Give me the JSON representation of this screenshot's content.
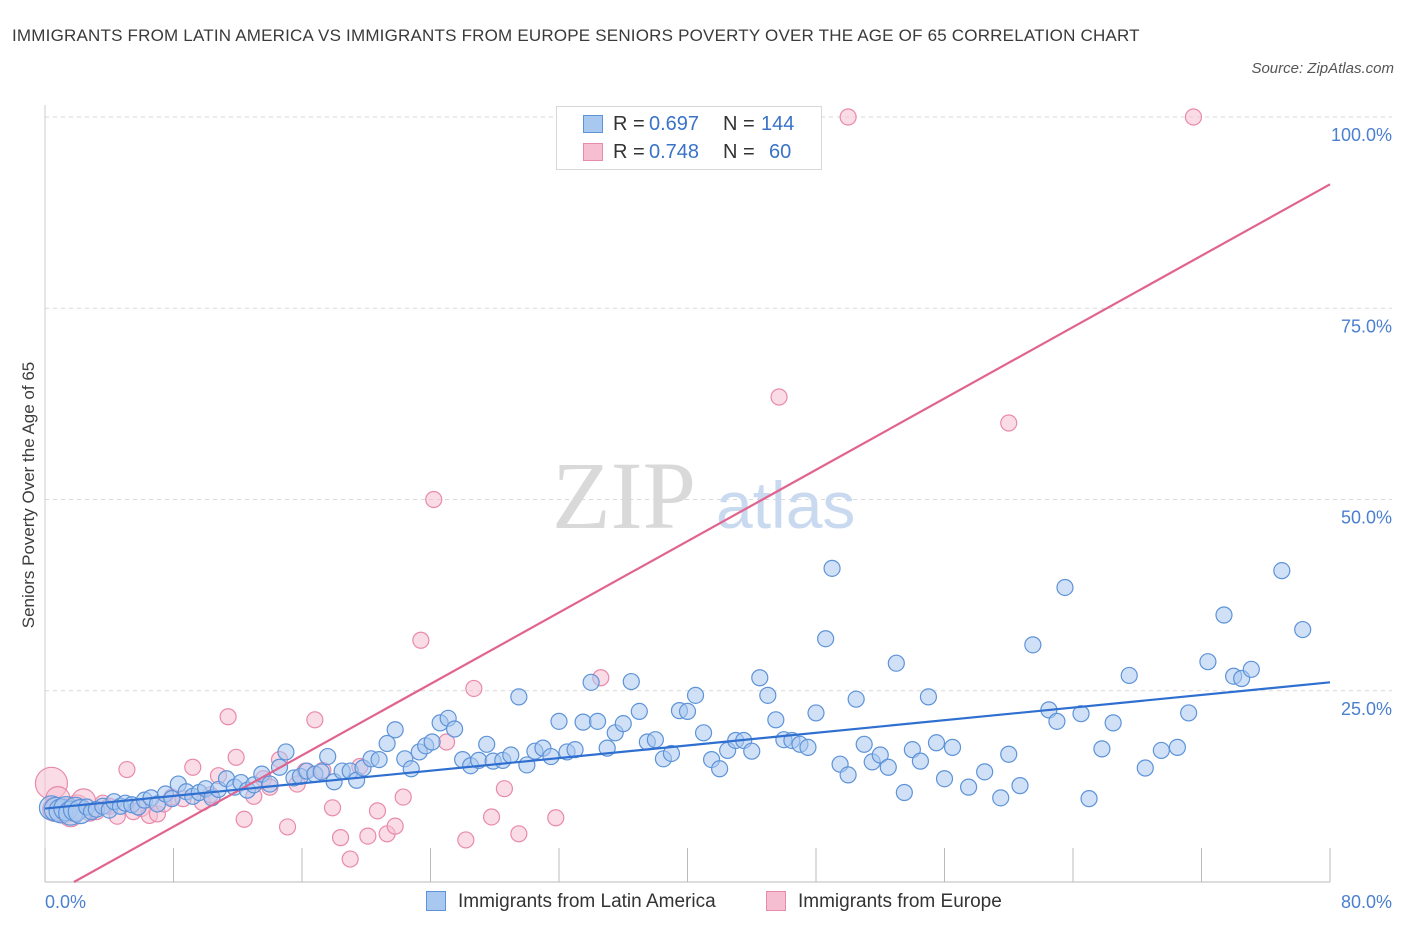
{
  "header": {
    "title": "IMMIGRANTS FROM LATIN AMERICA VS IMMIGRANTS FROM EUROPE SENIORS POVERTY OVER THE AGE OF 65 CORRELATION CHART",
    "source": "Source: ZipAtlas.com"
  },
  "watermark": {
    "zip": "ZIP",
    "atlas": "atlas"
  },
  "legend": {
    "rows": [
      {
        "r_label": "R =",
        "r_value": "0.697",
        "n_label": "N =",
        "n_value": "144"
      },
      {
        "r_label": "R =",
        "r_value": "0.748",
        "n_label": "N =",
        "n_value": "60"
      }
    ]
  },
  "colors": {
    "latin_fill": "#a9c8f0",
    "latin_stroke": "#5d93d8",
    "latin_line": "#2f6fd0",
    "europe_fill": "#f6bfd1",
    "europe_stroke": "#e98aab",
    "europe_line": "#e0648f",
    "tick": "#4b7fd0",
    "grid": "#d9d9d9"
  },
  "chart_data": {
    "type": "scatter",
    "title": "IMMIGRANTS FROM LATIN AMERICA VS IMMIGRANTS FROM EUROPE SENIORS POVERTY OVER THE AGE OF 65 CORRELATION CHART",
    "xlabel": "",
    "ylabel": "Seniors Poverty Over the Age of 65",
    "xlim": [
      0,
      80
    ],
    "ylim": [
      0,
      100
    ],
    "x_tick_labels": [
      "0.0%",
      "80.0%"
    ],
    "y_tick_values": [
      25,
      50,
      75,
      100
    ],
    "y_tick_labels": [
      "25.0%",
      "50.0%",
      "75.0%",
      "100.0%"
    ],
    "grid": true,
    "legend_position": "top-center",
    "series": [
      {
        "name": "Immigrants from Latin America",
        "R": 0.697,
        "N": 144,
        "trend": [
          [
            0,
            9.6
          ],
          [
            80,
            26.1
          ]
        ],
        "points": [
          [
            0.4,
            9.7
          ],
          [
            0.7,
            9.5
          ],
          [
            1.0,
            9.3
          ],
          [
            1.3,
            9.6
          ],
          [
            1.6,
            9.0
          ],
          [
            1.9,
            9.5
          ],
          [
            2.2,
            9.2
          ],
          [
            2.6,
            9.8
          ],
          [
            2.9,
            9.2
          ],
          [
            3.2,
            9.5
          ],
          [
            3.6,
            9.9
          ],
          [
            4.0,
            9.4
          ],
          [
            4.3,
            10.5
          ],
          [
            4.7,
            9.9
          ],
          [
            5.0,
            10.3
          ],
          [
            5.4,
            10.1
          ],
          [
            5.8,
            9.8
          ],
          [
            6.2,
            10.7
          ],
          [
            6.6,
            11.0
          ],
          [
            7.0,
            10.2
          ],
          [
            7.5,
            11.5
          ],
          [
            7.9,
            10.9
          ],
          [
            8.3,
            12.8
          ],
          [
            8.8,
            11.8
          ],
          [
            9.2,
            11.2
          ],
          [
            9.6,
            11.7
          ],
          [
            10.0,
            12.2
          ],
          [
            10.4,
            11.0
          ],
          [
            10.8,
            12.1
          ],
          [
            11.3,
            13.5
          ],
          [
            11.8,
            12.4
          ],
          [
            12.2,
            13.0
          ],
          [
            12.6,
            12.0
          ],
          [
            13.0,
            12.7
          ],
          [
            13.5,
            14.1
          ],
          [
            14.0,
            12.8
          ],
          [
            14.6,
            15.0
          ],
          [
            15.0,
            17.0
          ],
          [
            15.5,
            13.6
          ],
          [
            15.9,
            13.8
          ],
          [
            16.3,
            14.5
          ],
          [
            16.8,
            14.1
          ],
          [
            17.2,
            14.4
          ],
          [
            17.6,
            16.4
          ],
          [
            18.0,
            13.1
          ],
          [
            18.5,
            14.5
          ],
          [
            19.0,
            14.5
          ],
          [
            19.4,
            13.3
          ],
          [
            19.8,
            14.9
          ],
          [
            20.3,
            16.1
          ],
          [
            20.8,
            16.0
          ],
          [
            21.3,
            18.1
          ],
          [
            21.8,
            19.9
          ],
          [
            22.4,
            16.1
          ],
          [
            22.8,
            14.8
          ],
          [
            23.3,
            17.0
          ],
          [
            23.7,
            17.8
          ],
          [
            24.1,
            18.3
          ],
          [
            24.6,
            20.8
          ],
          [
            25.1,
            21.4
          ],
          [
            25.5,
            20.0
          ],
          [
            26.0,
            16.0
          ],
          [
            26.5,
            15.2
          ],
          [
            27.0,
            15.9
          ],
          [
            27.5,
            18.0
          ],
          [
            27.9,
            15.8
          ],
          [
            28.5,
            15.9
          ],
          [
            29.0,
            16.6
          ],
          [
            29.5,
            24.2
          ],
          [
            30.0,
            15.3
          ],
          [
            30.5,
            17.1
          ],
          [
            31.0,
            17.5
          ],
          [
            31.5,
            16.4
          ],
          [
            32.0,
            21.0
          ],
          [
            32.5,
            17.0
          ],
          [
            33.0,
            17.3
          ],
          [
            33.5,
            20.9
          ],
          [
            34.0,
            26.1
          ],
          [
            34.4,
            21.0
          ],
          [
            35.0,
            17.5
          ],
          [
            35.5,
            19.5
          ],
          [
            36.0,
            20.7
          ],
          [
            36.5,
            26.2
          ],
          [
            37.0,
            22.3
          ],
          [
            37.5,
            18.3
          ],
          [
            38.0,
            18.6
          ],
          [
            38.5,
            16.1
          ],
          [
            39.0,
            16.8
          ],
          [
            39.5,
            22.4
          ],
          [
            40.0,
            22.3
          ],
          [
            40.5,
            24.4
          ],
          [
            41.0,
            19.5
          ],
          [
            41.5,
            16.0
          ],
          [
            42.0,
            14.8
          ],
          [
            42.5,
            17.2
          ],
          [
            43.0,
            18.5
          ],
          [
            43.5,
            18.5
          ],
          [
            44.0,
            17.1
          ],
          [
            44.5,
            26.7
          ],
          [
            45.0,
            24.4
          ],
          [
            45.5,
            21.2
          ],
          [
            46.0,
            18.6
          ],
          [
            46.5,
            18.5
          ],
          [
            47.0,
            18.0
          ],
          [
            47.5,
            17.6
          ],
          [
            48.0,
            22.1
          ],
          [
            48.6,
            31.8
          ],
          [
            49.0,
            41.0
          ],
          [
            49.5,
            15.4
          ],
          [
            50.0,
            14.0
          ],
          [
            50.5,
            23.9
          ],
          [
            51.0,
            18.0
          ],
          [
            51.5,
            15.7
          ],
          [
            52.0,
            16.6
          ],
          [
            52.5,
            15.0
          ],
          [
            53.0,
            28.6
          ],
          [
            53.5,
            11.7
          ],
          [
            54.0,
            17.3
          ],
          [
            54.5,
            15.8
          ],
          [
            55.0,
            24.2
          ],
          [
            55.5,
            18.2
          ],
          [
            56.0,
            13.5
          ],
          [
            56.5,
            17.6
          ],
          [
            57.5,
            12.4
          ],
          [
            58.5,
            14.4
          ],
          [
            59.5,
            11.0
          ],
          [
            60.0,
            16.7
          ],
          [
            60.7,
            12.6
          ],
          [
            61.5,
            31.0
          ],
          [
            62.5,
            22.5
          ],
          [
            63.0,
            21.0
          ],
          [
            63.5,
            38.5
          ],
          [
            64.5,
            22.0
          ],
          [
            65.0,
            10.9
          ],
          [
            65.8,
            17.4
          ],
          [
            66.5,
            20.8
          ],
          [
            67.5,
            27.0
          ],
          [
            68.5,
            14.9
          ],
          [
            69.5,
            17.2
          ],
          [
            70.5,
            17.6
          ],
          [
            71.2,
            22.1
          ],
          [
            72.4,
            28.8
          ],
          [
            73.4,
            34.9
          ],
          [
            74.0,
            26.9
          ],
          [
            74.5,
            26.6
          ],
          [
            75.1,
            27.8
          ],
          [
            77.0,
            40.7
          ],
          [
            78.3,
            33.0
          ]
        ]
      },
      {
        "name": "Immigrants from Europe",
        "R": 0.748,
        "N": 60,
        "trend": [
          [
            1.8,
            0
          ],
          [
            80,
            91.2
          ]
        ],
        "points": [
          [
            0.4,
            12.9
          ],
          [
            0.8,
            10.9
          ],
          [
            1.2,
            9.3
          ],
          [
            1.6,
            8.8
          ],
          [
            2.0,
            9.8
          ],
          [
            2.4,
            10.6
          ],
          [
            2.8,
            9.0
          ],
          [
            3.2,
            9.2
          ],
          [
            3.6,
            10.3
          ],
          [
            4.0,
            9.9
          ],
          [
            4.5,
            8.6
          ],
          [
            5.1,
            14.7
          ],
          [
            5.5,
            9.2
          ],
          [
            6.0,
            9.6
          ],
          [
            6.5,
            8.7
          ],
          [
            7.0,
            8.9
          ],
          [
            7.4,
            10.2
          ],
          [
            7.9,
            11.1
          ],
          [
            8.6,
            10.9
          ],
          [
            9.2,
            15.0
          ],
          [
            9.8,
            10.4
          ],
          [
            10.3,
            11.4
          ],
          [
            10.8,
            13.9
          ],
          [
            11.4,
            21.6
          ],
          [
            11.9,
            16.3
          ],
          [
            12.4,
            8.2
          ],
          [
            13.0,
            11.2
          ],
          [
            13.6,
            13.5
          ],
          [
            14.0,
            12.4
          ],
          [
            14.6,
            16.0
          ],
          [
            15.1,
            7.2
          ],
          [
            15.7,
            12.8
          ],
          [
            16.2,
            14.5
          ],
          [
            16.8,
            21.2
          ],
          [
            17.3,
            14.6
          ],
          [
            17.9,
            9.7
          ],
          [
            18.4,
            5.8
          ],
          [
            19.0,
            3.0
          ],
          [
            19.6,
            15.1
          ],
          [
            20.1,
            6.0
          ],
          [
            20.7,
            9.3
          ],
          [
            21.3,
            6.3
          ],
          [
            21.8,
            7.3
          ],
          [
            22.3,
            11.1
          ],
          [
            23.4,
            31.6
          ],
          [
            24.2,
            50.0
          ],
          [
            25.0,
            18.3
          ],
          [
            26.2,
            5.5
          ],
          [
            26.7,
            25.3
          ],
          [
            27.8,
            8.5
          ],
          [
            28.6,
            12.2
          ],
          [
            29.5,
            6.3
          ],
          [
            31.8,
            8.4
          ],
          [
            34.6,
            26.7
          ],
          [
            40.6,
            100.0
          ],
          [
            45.7,
            63.4
          ],
          [
            50.0,
            100.0
          ],
          [
            60.0,
            60.0
          ],
          [
            71.5,
            100.0
          ],
          [
            0.6,
            9.5
          ]
        ]
      }
    ]
  },
  "bottom_legend": {
    "latin_label": "Immigrants from Latin America",
    "europe_label": "Immigrants from Europe"
  }
}
